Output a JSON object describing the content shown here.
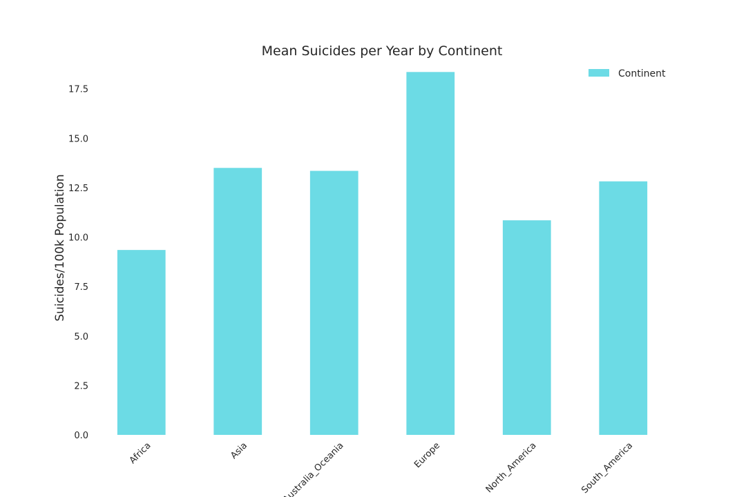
{
  "chart_data": {
    "type": "bar",
    "title": "Mean Suicides per Year by Continent",
    "xlabel": "",
    "ylabel": "Suicides/100k Population",
    "categories": [
      "Africa",
      "Asia",
      "Australia_Oceania",
      "Europe",
      "North_America",
      "South_America"
    ],
    "series": [
      {
        "name": "Continent",
        "values": [
          9.35,
          13.5,
          13.35,
          18.35,
          10.85,
          12.82
        ]
      }
    ],
    "ylim": [
      0,
      18.5
    ],
    "yticks": [
      "0.0",
      "2.5",
      "5.0",
      "7.5",
      "10.0",
      "12.5",
      "15.0",
      "17.5"
    ],
    "grid": false,
    "legend_position": "top-right",
    "colors": {
      "bar": "#6cdbe5",
      "text": "#262626"
    }
  }
}
